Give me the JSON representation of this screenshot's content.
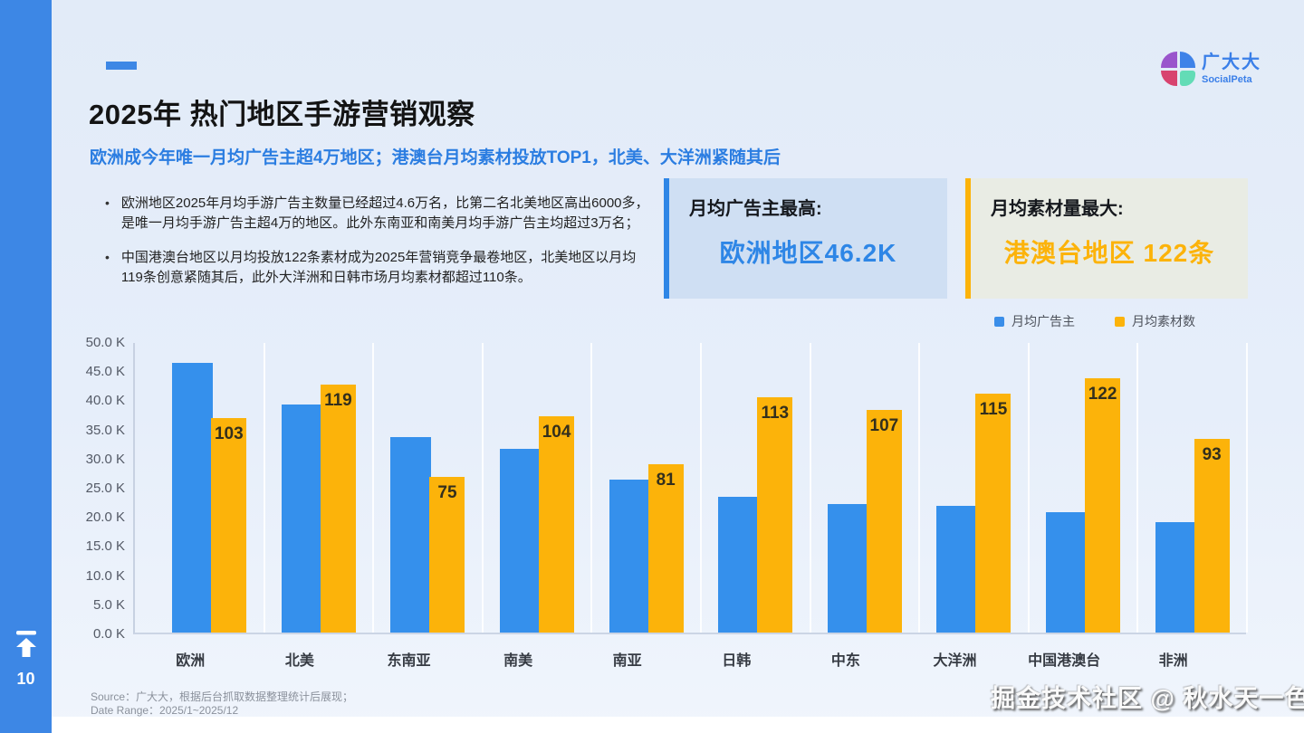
{
  "sidebar": {
    "page_number": "10"
  },
  "logo": {
    "name": "广大大",
    "sub": "SocialPeta"
  },
  "header": {
    "title": "2025年 热门地区手游营销观察",
    "subtitle": "欧洲成今年唯一月均广告主超4万地区；港澳台月均素材投放TOP1，北美、大洋洲紧随其后"
  },
  "bullets": [
    {
      "marker": "•",
      "text": "欧洲地区2025年月均手游广告主数量已经超过4.6万名，比第二名北美地区高出6000多，是唯一月均手游广告主超4万的地区。此外东南亚和南美月均手游广告主均超过3万名；"
    },
    {
      "marker": "•",
      "text": "中国港澳台地区以月均投放122条素材成为2025年营销竞争最卷地区，北美地区以月均119条创意紧随其后，此外大洋洲和日韩市场月均素材都超过110条。"
    }
  ],
  "highlight_cards": [
    {
      "label": "月均广告主最高:",
      "value": "欧洲地区46.2K",
      "accent": "#2e86e6",
      "background": "#cfdff3"
    },
    {
      "label": "月均素材量最大:",
      "value": "港澳台地区 122条",
      "accent": "#fcb30a",
      "background": "#e9ece4"
    }
  ],
  "chart_data": {
    "type": "bar",
    "title": "",
    "categories": [
      "欧洲",
      "北美",
      "东南亚",
      "南美",
      "南亚",
      "日韩",
      "中东",
      "大洋洲",
      "中国港澳台",
      "非洲"
    ],
    "series": [
      {
        "name": "月均广告主",
        "color": "#3590ec",
        "unit": "K",
        "axis": "left",
        "values": [
          46.2,
          39.2,
          33.5,
          31.5,
          26.3,
          23.3,
          22.0,
          21.8,
          20.6,
          19.0
        ]
      },
      {
        "name": "月均素材数",
        "color": "#fcb30a",
        "unit": "条",
        "axis": "right-hidden",
        "data_labels": true,
        "values": [
          103,
          119,
          75,
          104,
          81,
          113,
          107,
          115,
          122,
          93
        ]
      }
    ],
    "left_axis": {
      "min": 0,
      "max": 50,
      "step": 5,
      "unit": "K",
      "ticks": [
        "50.0 K",
        "45.0 K",
        "40.0 K",
        "35.0 K",
        "30.0 K",
        "25.0 K",
        "20.0 K",
        "15.0 K",
        "10.0 K",
        "5.0 K",
        "0.0 K"
      ]
    },
    "right_axis": {
      "min": 0,
      "max": 140,
      "visible": false
    },
    "grid": "vertical-only",
    "legend_position": "top-right"
  },
  "source": {
    "line1": "Source：广大大，根据后台抓取数据整理统计后展现；",
    "line2": "Date Range：2025/1~2025/12"
  },
  "watermark": "掘金技术社区 @ 秋水天一色"
}
